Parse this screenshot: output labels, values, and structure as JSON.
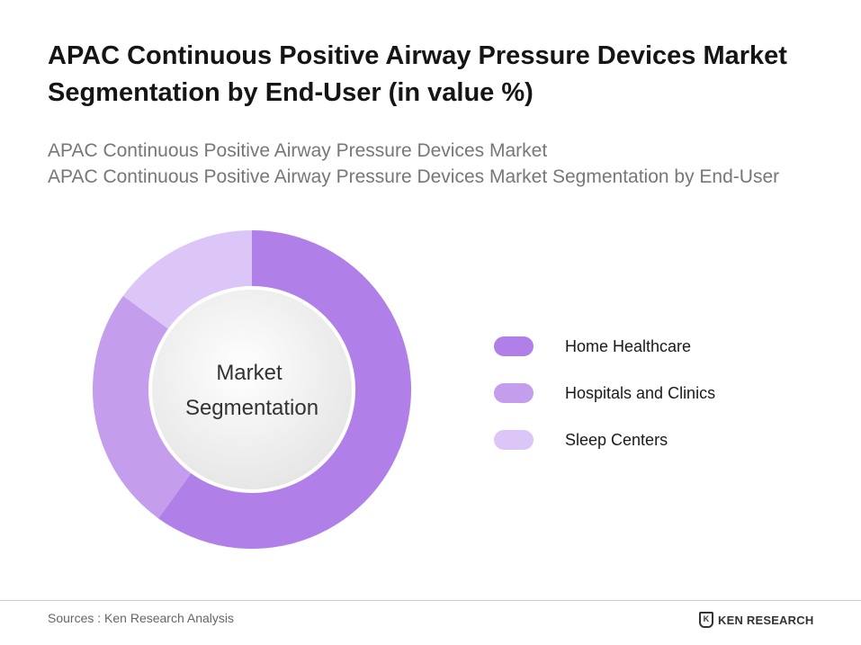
{
  "header": {
    "title": "APAC Continuous Positive Airway Pressure Devices Market Segmentation by End-User (in value %)",
    "subtitle_1": "APAC Continuous Positive Airway Pressure Devices Market",
    "subtitle_2": "APAC Continuous Positive Airway Pressure Devices Market Segmentation by End-User"
  },
  "chart_data": {
    "type": "pie",
    "variant": "donut",
    "center_label": [
      "Market",
      "Segmentation"
    ],
    "categories": [
      "Home Healthcare",
      "Hospitals and Clinics",
      "Sleep Centers"
    ],
    "values": [
      60,
      25,
      15
    ],
    "colors": [
      "#b07fe8",
      "#c59ded",
      "#dcc5f7"
    ],
    "legend_position": "right"
  },
  "footer": {
    "source": "Sources : Ken Research Analysis",
    "logo_text": "KEN RESEARCH"
  }
}
